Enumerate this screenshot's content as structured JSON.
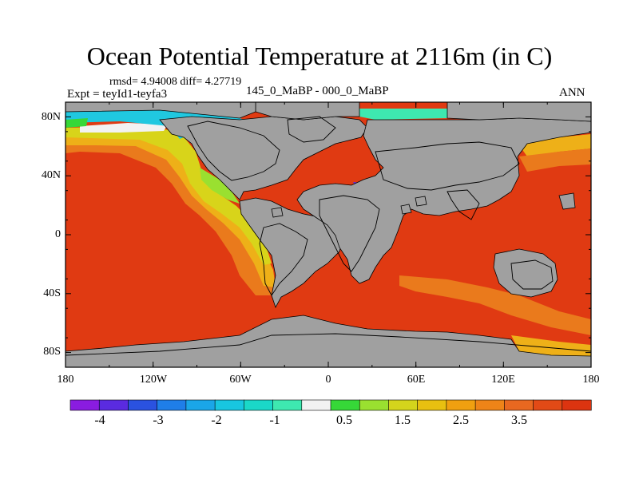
{
  "title": "Ocean Potential Temperature at 2116m (in C)",
  "stats": "rmsd= 4.94008 diff= 4.27719",
  "experiment": "Expt = teyId1-teyfa3",
  "subtitle": "145_0_MaBP - 000_0_MaBP",
  "season": "ANN",
  "lat_labels": [
    "80N",
    "40N",
    "0",
    "40S",
    "80S"
  ],
  "lon_labels": [
    "180",
    "120W",
    "60W",
    "0",
    "60E",
    "120E",
    "180"
  ],
  "colorbar": {
    "labels": [
      "-4",
      "-3",
      "-2",
      "-1",
      "0.5",
      "1.5",
      "2.5",
      "3.5"
    ],
    "colors": [
      "#8a1ce0",
      "#5a2be0",
      "#2a52e0",
      "#1f7ee8",
      "#1aa6e8",
      "#18c6e0",
      "#1ad8c8",
      "#3ee8b0",
      "#f2f2f2",
      "#36d838",
      "#9ae030",
      "#d4d41c",
      "#e8c010",
      "#f0a010",
      "#ee8418",
      "#e86820",
      "#e24a16",
      "#dc3410"
    ]
  },
  "colors": {
    "land": "#a0a0a0",
    "ocean_warm": "#e03a12",
    "ocean_orange": "#ea7a1c",
    "ocean_amber": "#eeb018",
    "ocean_yellow": "#d8d41a",
    "cyan": "#20c8e0",
    "teal": "#3ee8b0"
  }
}
